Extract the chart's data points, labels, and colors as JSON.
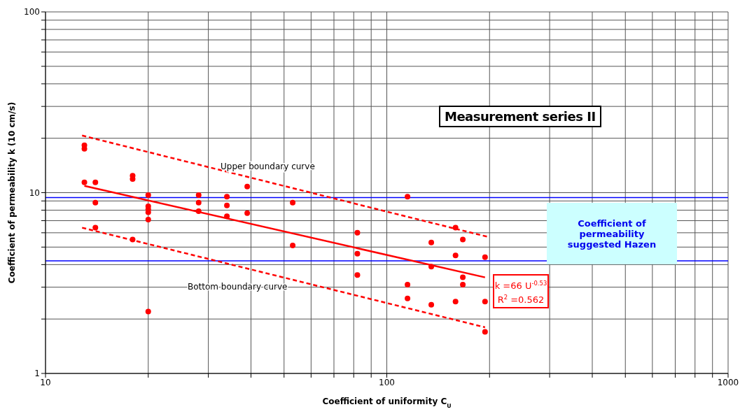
{
  "chart_data": {
    "type": "scatter",
    "title": "Measurement series II",
    "xlabel": "Coefficient of uniformity C$_{U}$",
    "ylabel": "Coefficient of permeability k (10 cm/s)",
    "log": "xy",
    "grid": true,
    "marker": "circle",
    "xlim": [
      10,
      1000
    ],
    "ylim": [
      1,
      100
    ],
    "xticks": [
      10,
      {
        "value": 20,
        "label": null
      },
      {
        "value": 30,
        "label": null
      },
      {
        "value": 40,
        "label": null
      },
      {
        "value": 50,
        "label": null
      },
      {
        "value": 60,
        "label": null
      },
      {
        "value": 70,
        "label": null
      },
      {
        "value": 80,
        "label": null
      },
      {
        "value": 90,
        "label": null
      },
      100,
      {
        "value": 200,
        "label": null
      },
      {
        "value": 300,
        "label": null
      },
      {
        "value": 400,
        "label": null
      },
      {
        "value": 500,
        "label": null
      },
      {
        "value": 600,
        "label": null
      },
      {
        "value": 700,
        "label": null
      },
      {
        "value": 800,
        "label": null
      },
      {
        "value": 900,
        "label": null
      },
      1000
    ],
    "yticks": [
      1,
      {
        "value": 2,
        "label": null
      },
      {
        "value": 3,
        "label": null
      },
      {
        "value": 4,
        "label": null
      },
      {
        "value": 5,
        "label": null
      },
      {
        "value": 6,
        "label": null
      },
      {
        "value": 7,
        "label": null
      },
      {
        "value": 8,
        "label": null
      },
      {
        "value": 9,
        "label": null
      },
      10,
      {
        "value": 20,
        "label": null
      },
      {
        "value": 30,
        "label": null
      },
      {
        "value": 40,
        "label": null
      },
      {
        "value": 50,
        "label": null
      },
      {
        "value": 60,
        "label": null
      },
      {
        "value": 70,
        "label": null
      },
      {
        "value": 80,
        "label": null
      },
      {
        "value": 90,
        "label": null
      },
      100
    ],
    "series": [
      {
        "color": "#ff0000",
        "x": [
          13,
          13,
          13,
          14,
          14,
          14,
          18,
          18,
          18,
          20,
          20,
          20,
          20,
          20,
          20,
          28.1,
          28.1,
          28.1,
          34,
          34,
          34,
          39,
          39,
          53,
          53,
          82,
          82,
          82,
          115,
          115,
          115,
          135,
          135,
          135,
          159,
          159,
          159,
          167,
          167,
          167,
          194,
          194,
          194
        ],
        "values": [
          18.3,
          17.5,
          11.4,
          11.4,
          8.8,
          6.4,
          12.4,
          11.9,
          5.5,
          9.7,
          8.4,
          8.1,
          7.8,
          7.1,
          2.2,
          9.7,
          8.8,
          7.9,
          9.5,
          8.5,
          7.4,
          10.8,
          7.7,
          8.8,
          5.1,
          6.0,
          4.6,
          3.5,
          9.5,
          3.1,
          2.6,
          5.3,
          3.9,
          2.4,
          6.4,
          4.5,
          2.5,
          5.5,
          3.4,
          3.1,
          4.4,
          2.5,
          1.7
        ]
      },
      {
        "type": "line",
        "color": "#ff0000",
        "line_style": "solid",
        "marker": "none",
        "x": [
          13,
          194
        ],
        "values": [
          10.9,
          3.4
        ]
      },
      {
        "type": "line",
        "color": "#ff0000",
        "line_style": "dashed",
        "marker": "none",
        "x": [
          12.8,
          197.5
        ],
        "values": [
          20.7,
          5.7
        ]
      },
      {
        "type": "line",
        "color": "#ff0000",
        "line_style": "dashed",
        "marker": "none",
        "x": [
          12.8,
          194
        ],
        "values": [
          6.4,
          1.8
        ]
      }
    ],
    "ref_lines": [
      {
        "axis": "y",
        "value": 9.4,
        "color": "#0000ff",
        "line_style": "solid"
      },
      {
        "axis": "y",
        "value": 4.2,
        "color": "#0000ff",
        "line_style": "solid"
      }
    ],
    "annotations": [
      "Upper boundary curve",
      "Bottom boundary curve",
      "k =66 U$^{-0.53}$",
      "R$^{2}$ =0.562",
      "Coefficient of permeability suggested Hazen"
    ]
  }
}
